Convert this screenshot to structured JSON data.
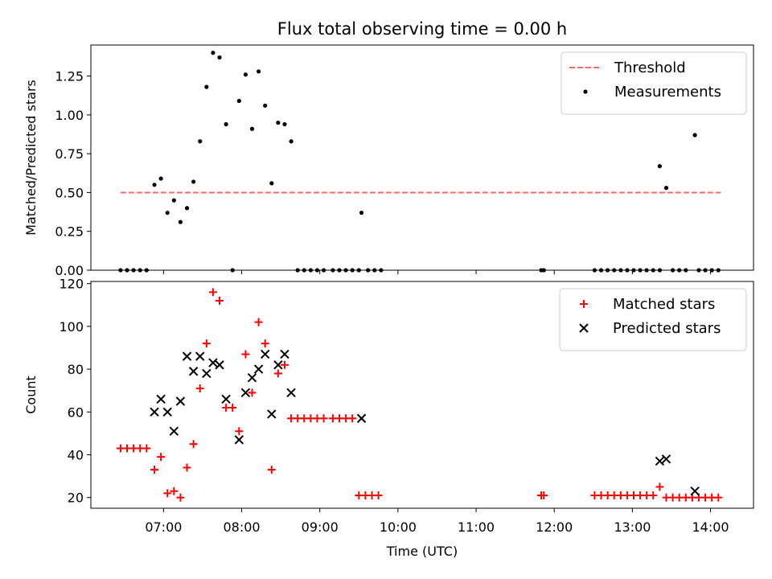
{
  "title": "Flux total observing time = 0.00 h",
  "chart_data": [
    {
      "type": "scatter",
      "ylabel": "Matched/Predicted stars",
      "ylim": [
        0,
        1.45
      ],
      "yticks": [
        "0.00",
        "0.25",
        "0.50",
        "0.75",
        "1.00",
        "1.25"
      ],
      "xlim_hours": [
        6.07,
        14.55
      ],
      "legend_position": "top-right",
      "threshold": {
        "name": "Threshold",
        "value": 0.5,
        "x_range": [
          "06:27",
          "14:08"
        ],
        "color": "#ff6666"
      },
      "series": [
        {
          "name": "Measurements",
          "color": "#000000",
          "points": [
            [
              "06:27",
              0
            ],
            [
              "06:32",
              0
            ],
            [
              "06:37",
              0
            ],
            [
              "06:42",
              0
            ],
            [
              "06:47",
              0
            ],
            [
              "06:53",
              0.55
            ],
            [
              "06:58",
              0.59
            ],
            [
              "07:03",
              0.37
            ],
            [
              "07:08",
              0.45
            ],
            [
              "07:13",
              0.31
            ],
            [
              "07:18",
              0.4
            ],
            [
              "07:23",
              0.57
            ],
            [
              "07:28",
              0.83
            ],
            [
              "07:33",
              1.18
            ],
            [
              "07:38",
              1.4
            ],
            [
              "07:43",
              1.37
            ],
            [
              "07:48",
              0.94
            ],
            [
              "07:53",
              0
            ],
            [
              "07:58",
              1.09
            ],
            [
              "08:03",
              1.26
            ],
            [
              "08:08",
              0.91
            ],
            [
              "08:13",
              1.28
            ],
            [
              "08:18",
              1.06
            ],
            [
              "08:23",
              0.56
            ],
            [
              "08:28",
              0.95
            ],
            [
              "08:33",
              0.94
            ],
            [
              "08:38",
              0.83
            ],
            [
              "08:43",
              0
            ],
            [
              "08:48",
              0
            ],
            [
              "08:53",
              0
            ],
            [
              "08:58",
              0
            ],
            [
              "09:03",
              0
            ],
            [
              "09:10",
              0
            ],
            [
              "09:15",
              0
            ],
            [
              "09:20",
              0
            ],
            [
              "09:25",
              0
            ],
            [
              "09:30",
              0
            ],
            [
              "09:32",
              0.37
            ],
            [
              "09:37",
              0
            ],
            [
              "09:42",
              0
            ],
            [
              "09:47",
              0
            ],
            [
              "11:50",
              0
            ],
            [
              "11:52",
              0
            ],
            [
              "12:31",
              0
            ],
            [
              "12:36",
              0
            ],
            [
              "12:41",
              0
            ],
            [
              "12:46",
              0
            ],
            [
              "12:51",
              0
            ],
            [
              "12:56",
              0
            ],
            [
              "13:01",
              0
            ],
            [
              "13:06",
              0
            ],
            [
              "13:11",
              0
            ],
            [
              "13:16",
              0
            ],
            [
              "13:21",
              0
            ],
            [
              "13:21",
              0.67
            ],
            [
              "13:26",
              0.53
            ],
            [
              "13:31",
              0
            ],
            [
              "13:36",
              0
            ],
            [
              "13:41",
              0
            ],
            [
              "13:48",
              0.87
            ],
            [
              "13:51",
              0
            ],
            [
              "13:56",
              0
            ],
            [
              "14:01",
              0
            ],
            [
              "14:06",
              0
            ]
          ]
        }
      ]
    },
    {
      "type": "scatter",
      "xlabel": "Time (UTC)",
      "ylabel": "Count",
      "ylim": [
        15,
        121
      ],
      "yticks": [
        "20",
        "40",
        "60",
        "80",
        "100",
        "120"
      ],
      "xticks": [
        "07:00",
        "08:00",
        "09:00",
        "10:00",
        "11:00",
        "12:00",
        "13:00",
        "14:00"
      ],
      "xlim_hours": [
        6.07,
        14.55
      ],
      "legend_position": "top-right",
      "series": [
        {
          "name": "Matched stars",
          "marker": "plus",
          "color": "#ff0000",
          "points": [
            [
              "06:27",
              43
            ],
            [
              "06:32",
              43
            ],
            [
              "06:37",
              43
            ],
            [
              "06:42",
              43
            ],
            [
              "06:47",
              43
            ],
            [
              "06:53",
              33
            ],
            [
              "06:58",
              39
            ],
            [
              "07:03",
              22
            ],
            [
              "07:08",
              23
            ],
            [
              "07:13",
              20
            ],
            [
              "07:18",
              34
            ],
            [
              "07:23",
              45
            ],
            [
              "07:28",
              71
            ],
            [
              "07:33",
              92
            ],
            [
              "07:38",
              116
            ],
            [
              "07:43",
              112
            ],
            [
              "07:48",
              62
            ],
            [
              "07:53",
              62
            ],
            [
              "07:58",
              51
            ],
            [
              "08:03",
              87
            ],
            [
              "08:08",
              69
            ],
            [
              "08:13",
              102
            ],
            [
              "08:18",
              92
            ],
            [
              "08:23",
              33
            ],
            [
              "08:28",
              78
            ],
            [
              "08:33",
              82
            ],
            [
              "08:38",
              57
            ],
            [
              "08:43",
              57
            ],
            [
              "08:48",
              57
            ],
            [
              "08:53",
              57
            ],
            [
              "08:58",
              57
            ],
            [
              "09:03",
              57
            ],
            [
              "09:10",
              57
            ],
            [
              "09:15",
              57
            ],
            [
              "09:20",
              57
            ],
            [
              "09:25",
              57
            ],
            [
              "09:30",
              21
            ],
            [
              "09:35",
              21
            ],
            [
              "09:40",
              21
            ],
            [
              "09:45",
              21
            ],
            [
              "11:50",
              21
            ],
            [
              "11:52",
              21
            ],
            [
              "12:31",
              21
            ],
            [
              "12:36",
              21
            ],
            [
              "12:41",
              21
            ],
            [
              "12:46",
              21
            ],
            [
              "12:51",
              21
            ],
            [
              "12:56",
              21
            ],
            [
              "13:01",
              21
            ],
            [
              "13:06",
              21
            ],
            [
              "13:11",
              21
            ],
            [
              "13:16",
              21
            ],
            [
              "13:21",
              25
            ],
            [
              "13:26",
              20
            ],
            [
              "13:31",
              20
            ],
            [
              "13:36",
              20
            ],
            [
              "13:41",
              20
            ],
            [
              "13:46",
              20
            ],
            [
              "13:51",
              20
            ],
            [
              "13:56",
              20
            ],
            [
              "14:01",
              20
            ],
            [
              "14:06",
              20
            ]
          ]
        },
        {
          "name": "Predicted stars",
          "marker": "x",
          "color": "#000000",
          "points": [
            [
              "06:53",
              60
            ],
            [
              "06:58",
              66
            ],
            [
              "07:03",
              60
            ],
            [
              "07:08",
              51
            ],
            [
              "07:13",
              65
            ],
            [
              "07:18",
              86
            ],
            [
              "07:23",
              79
            ],
            [
              "07:28",
              86
            ],
            [
              "07:33",
              78
            ],
            [
              "07:38",
              83
            ],
            [
              "07:43",
              82
            ],
            [
              "07:48",
              66
            ],
            [
              "07:58",
              47
            ],
            [
              "08:03",
              69
            ],
            [
              "08:08",
              76
            ],
            [
              "08:13",
              80
            ],
            [
              "08:18",
              87
            ],
            [
              "08:23",
              59
            ],
            [
              "08:28",
              82
            ],
            [
              "08:33",
              87
            ],
            [
              "08:38",
              69
            ],
            [
              "09:32",
              57
            ],
            [
              "13:21",
              37
            ],
            [
              "13:26",
              38
            ],
            [
              "13:48",
              23
            ]
          ]
        }
      ]
    }
  ]
}
